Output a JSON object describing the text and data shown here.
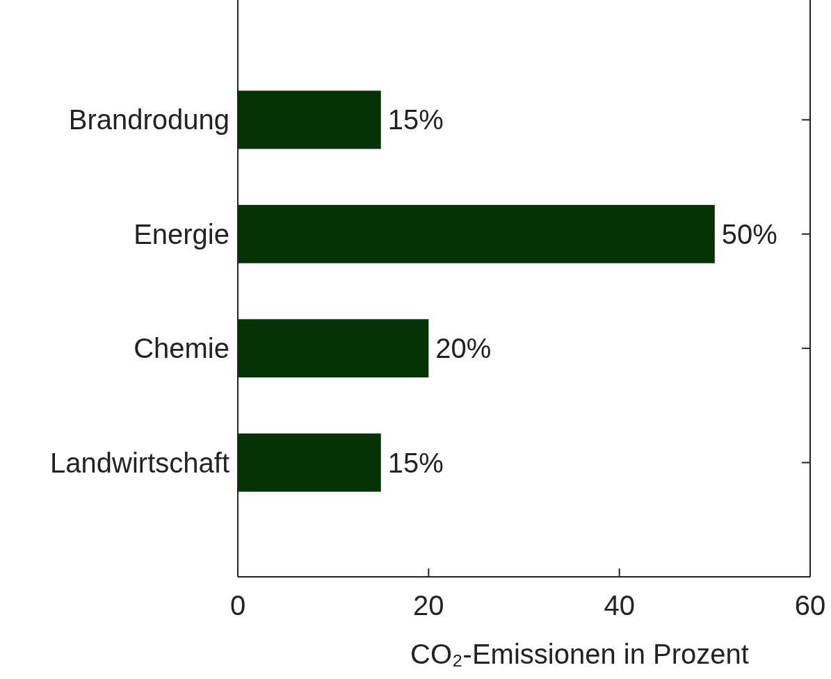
{
  "chart_data": {
    "type": "bar",
    "orientation": "horizontal",
    "xlabel": "CO₂-Emissionen in Prozent",
    "categories": [
      "Brandrodung",
      "Energie",
      "Chemie",
      "Landwirtschaft"
    ],
    "values": [
      15,
      50,
      20,
      15
    ],
    "value_labels": [
      "15%",
      "50%",
      "20%",
      "15%"
    ],
    "color": "#063306",
    "xlim": [
      0,
      60
    ],
    "xticks": [
      0,
      20,
      40,
      60
    ]
  }
}
